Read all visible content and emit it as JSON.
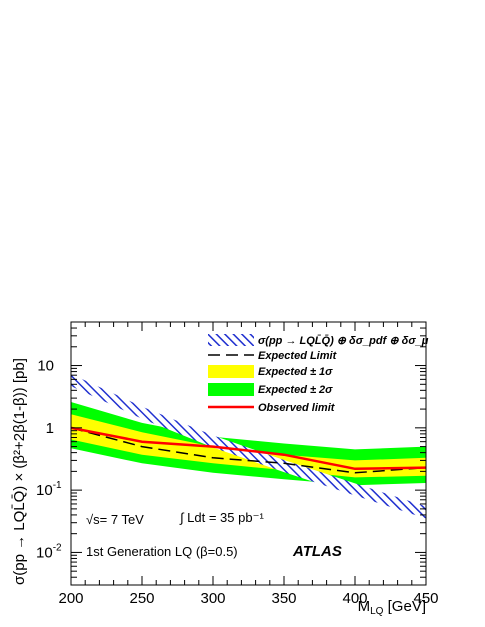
{
  "chart_data": {
    "type": "line",
    "title": "",
    "xlabel": "M_LQ [GeV]",
    "ylabel": "σ(pp → LQL̄Q̄) × (β²+2β(1-β)) [pb]",
    "xlim": [
      200,
      450
    ],
    "ylim": [
      0.003,
      50
    ],
    "yscale": "log",
    "x_ticks": [
      "200",
      "250",
      "300",
      "350",
      "400",
      "450"
    ],
    "y_ticks": [
      {
        "base": "10",
        "exp": "-2",
        "value": 0.01
      },
      {
        "base": "10",
        "exp": "-1",
        "value": 0.1
      },
      {
        "base": "1",
        "exp": "",
        "value": 1
      },
      {
        "base": "10",
        "exp": "",
        "value": 10
      }
    ],
    "theory_band": {
      "name": "σ(pp → LQL̄Q̄) ⊕ δσ_pdf ⊕ δσ_μ",
      "color": "#2030d0",
      "x": [
        200,
        250,
        300,
        350,
        400,
        450
      ],
      "central": [
        6.0,
        1.8,
        0.62,
        0.25,
        0.105,
        0.045
      ],
      "rel_width": 0.22
    },
    "series": [
      {
        "name": "Expected ± 2σ",
        "color": "#00ff00",
        "x": [
          200,
          250,
          300,
          350,
          400,
          450
        ],
        "low": [
          0.47,
          0.27,
          0.19,
          0.15,
          0.12,
          0.13
        ],
        "high": [
          2.6,
          1.2,
          0.72,
          0.56,
          0.45,
          0.5
        ]
      },
      {
        "name": "Expected ± 1σ",
        "color": "#ffff00",
        "x": [
          200,
          250,
          300,
          350,
          400,
          450
        ],
        "low": [
          0.65,
          0.37,
          0.27,
          0.21,
          0.16,
          0.17
        ],
        "high": [
          1.65,
          0.85,
          0.5,
          0.37,
          0.3,
          0.33
        ]
      },
      {
        "name": "Expected Limit",
        "color": "#000000",
        "x": [
          200,
          250,
          300,
          350,
          400,
          450
        ],
        "values": [
          1.0,
          0.5,
          0.33,
          0.27,
          0.19,
          0.23
        ]
      },
      {
        "name": "Observed limit",
        "color": "#ff0000",
        "x": [
          200,
          250,
          300,
          350,
          400,
          450
        ],
        "values": [
          1.0,
          0.6,
          0.5,
          0.37,
          0.22,
          0.23
        ]
      }
    ],
    "legend": {
      "placement": "top-right",
      "entries": [
        {
          "kind": "theory",
          "label": "σ(pp → LQL̄Q̄) ⊕ δσ_pdf ⊕ δσ_μ"
        },
        {
          "kind": "expected",
          "label": "Expected Limit"
        },
        {
          "kind": "band1",
          "label": "Expected ± 1σ"
        },
        {
          "kind": "band2",
          "label": "Expected ± 2σ"
        },
        {
          "kind": "observed",
          "label": "Observed limit"
        }
      ]
    },
    "annotations": {
      "energy": "√s= 7 TeV",
      "lumi": "∫ Ldt = 35 pb⁻¹",
      "generation": "1st Generation LQ (β=0.5)",
      "experiment": "ATLAS"
    }
  }
}
